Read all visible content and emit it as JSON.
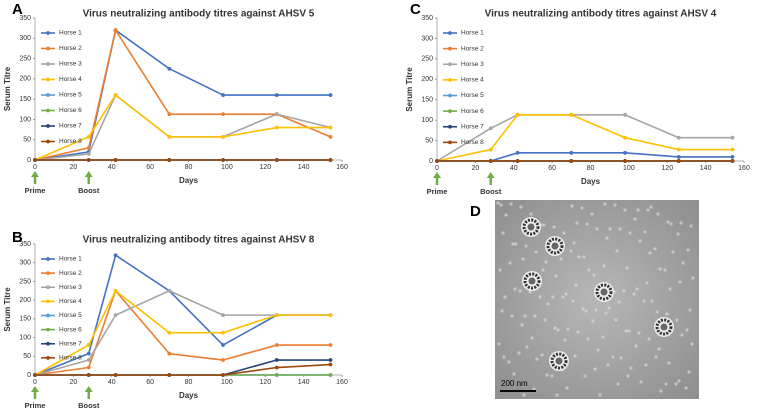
{
  "chart_data": [
    {
      "type": "line",
      "panel": "A",
      "title": "Virus neutralizing antibody titres against AHSV 5",
      "x_label": "Days",
      "y_label": "Serum Titre",
      "x": [
        0,
        28,
        42,
        70,
        98,
        126,
        154
      ],
      "xlim": [
        0,
        160
      ],
      "xticks": [
        0,
        20,
        40,
        60,
        80,
        100,
        120,
        140,
        160
      ],
      "ylim": [
        0,
        350
      ],
      "yticks": [
        0,
        50,
        100,
        150,
        200,
        250,
        300,
        350
      ],
      "grid": false,
      "legend": "upper left",
      "series": [
        {
          "name": "Horse 1",
          "color": "#4472c4",
          "values": [
            0,
            20,
            320,
            225,
            160,
            160,
            160
          ]
        },
        {
          "name": "Horse 2",
          "color": "#ed7d31",
          "values": [
            0,
            30,
            320,
            113,
            113,
            113,
            57
          ]
        },
        {
          "name": "Horse 3",
          "color": "#a5a5a5",
          "values": [
            0,
            15,
            160,
            57,
            57,
            113,
            80
          ]
        },
        {
          "name": "Horse 4",
          "color": "#ffc000",
          "values": [
            0,
            57,
            160,
            57,
            57,
            80,
            80
          ]
        },
        {
          "name": "Horse 5",
          "color": "#5b9bd5",
          "values": [
            0,
            0,
            0,
            0,
            0,
            0,
            0
          ]
        },
        {
          "name": "Horse 6",
          "color": "#70ad47",
          "values": [
            0,
            0,
            0,
            0,
            0,
            0,
            0
          ]
        },
        {
          "name": "Horse 7",
          "color": "#264478",
          "values": [
            0,
            0,
            0,
            0,
            0,
            0,
            0
          ]
        },
        {
          "name": "Horse 8",
          "color": "#9e480e",
          "values": [
            0,
            0,
            0,
            0,
            0,
            0,
            0
          ]
        }
      ],
      "annotations": [
        {
          "label": "Prime",
          "x": 0
        },
        {
          "label": "Boost",
          "x": 28
        }
      ]
    },
    {
      "type": "line",
      "panel": "B",
      "title": "Virus neutralizing antibody titres against AHSV 8",
      "x_label": "Days",
      "y_label": "Serum Titre",
      "x": [
        0,
        28,
        42,
        70,
        98,
        126,
        154
      ],
      "xlim": [
        0,
        160
      ],
      "xticks": [
        0,
        20,
        40,
        60,
        80,
        100,
        120,
        140,
        160
      ],
      "ylim": [
        0,
        350
      ],
      "yticks": [
        0,
        50,
        100,
        150,
        200,
        250,
        300,
        350
      ],
      "grid": false,
      "legend": "upper left",
      "series": [
        {
          "name": "Horse 1",
          "color": "#4472c4",
          "values": [
            0,
            57,
            320,
            225,
            80,
            160,
            160
          ]
        },
        {
          "name": "Horse 2",
          "color": "#ed7d31",
          "values": [
            0,
            20,
            225,
            57,
            40,
            80,
            80
          ]
        },
        {
          "name": "Horse 3",
          "color": "#a5a5a5",
          "values": [
            0,
            40,
            160,
            225,
            160,
            160,
            160
          ]
        },
        {
          "name": "Horse 4",
          "color": "#ffc000",
          "values": [
            0,
            80,
            225,
            113,
            113,
            160,
            160
          ]
        },
        {
          "name": "Horse 5",
          "color": "#5b9bd5",
          "values": [
            0,
            0,
            0,
            0,
            0,
            0,
            0
          ]
        },
        {
          "name": "Horse 6",
          "color": "#70ad47",
          "values": [
            0,
            0,
            0,
            0,
            0,
            0,
            0
          ]
        },
        {
          "name": "Horse 7",
          "color": "#264478",
          "values": [
            0,
            0,
            0,
            0,
            0,
            40,
            40
          ]
        },
        {
          "name": "Horse 8",
          "color": "#9e480e",
          "values": [
            0,
            0,
            0,
            0,
            0,
            20,
            28
          ]
        }
      ],
      "annotations": [
        {
          "label": "Prime",
          "x": 0
        },
        {
          "label": "Boost",
          "x": 28
        }
      ]
    },
    {
      "type": "line",
      "panel": "C",
      "title": "Virus neutralizing antibody titres against AHSV 4",
      "x_label": "Days",
      "y_label": "Serum Titre",
      "x": [
        0,
        28,
        42,
        70,
        98,
        126,
        154
      ],
      "xlim": [
        0,
        160
      ],
      "xticks": [
        0,
        20,
        40,
        60,
        80,
        100,
        120,
        140,
        160
      ],
      "ylim": [
        0,
        350
      ],
      "yticks": [
        0,
        50,
        100,
        150,
        200,
        250,
        300,
        350
      ],
      "grid": false,
      "legend": "upper left",
      "series": [
        {
          "name": "Horse 1",
          "color": "#4472c4",
          "values": [
            0,
            0,
            20,
            20,
            20,
            10,
            10
          ]
        },
        {
          "name": "Horse 2",
          "color": "#ed7d31",
          "values": [
            0,
            0,
            0,
            0,
            0,
            0,
            0
          ]
        },
        {
          "name": "Horse 3",
          "color": "#a5a5a5",
          "values": [
            0,
            80,
            113,
            113,
            113,
            57,
            57
          ]
        },
        {
          "name": "Horse 4",
          "color": "#ffc000",
          "values": [
            0,
            28,
            113,
            113,
            57,
            28,
            28
          ]
        },
        {
          "name": "Horse 5",
          "color": "#5b9bd5",
          "values": [
            0,
            0,
            0,
            0,
            0,
            0,
            0
          ]
        },
        {
          "name": "Horse 6",
          "color": "#70ad47",
          "values": [
            0,
            0,
            0,
            0,
            0,
            0,
            0
          ]
        },
        {
          "name": "Horse 7",
          "color": "#264478",
          "values": [
            0,
            0,
            0,
            0,
            0,
            0,
            0
          ]
        },
        {
          "name": "Horse 8",
          "color": "#9e480e",
          "values": [
            0,
            0,
            0,
            0,
            0,
            0,
            0
          ]
        }
      ],
      "annotations": [
        {
          "label": "Prime",
          "x": 0
        },
        {
          "label": "Boost",
          "x": 28
        }
      ]
    }
  ],
  "micrograph": {
    "panel": "D",
    "scale_bar": "200 nm"
  }
}
